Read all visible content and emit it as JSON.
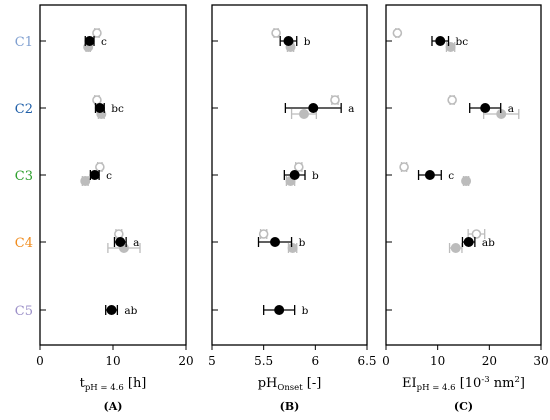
{
  "chart_data": [
    {
      "type": "scatter",
      "panel_label": "(A)",
      "xlabel_main": "t",
      "xlabel_sub": "pH = 4.6",
      "xlabel_tail": " [h]",
      "xlim": [
        0,
        20
      ],
      "xticks": [
        0,
        10,
        20
      ],
      "categories": [
        "C1",
        "C2",
        "C3",
        "C4",
        "C5"
      ],
      "category_colors": [
        "#7f9fd0",
        "#1f5fa8",
        "#2ea02e",
        "#f08c1e",
        "#9c90c8"
      ],
      "series": [
        {
          "role": "filled-black",
          "values": [
            6.8,
            8.2,
            7.5,
            11.0,
            9.8
          ],
          "errors": [
            0.6,
            0.6,
            0.6,
            0.8,
            0.8
          ]
        },
        {
          "role": "open-gray",
          "values": [
            7.8,
            7.8,
            8.2,
            10.8,
            null
          ],
          "errors": [
            0.3,
            0.3,
            0.3,
            0.4,
            null
          ]
        },
        {
          "role": "filled-gray",
          "values": [
            6.6,
            8.4,
            6.2,
            11.5,
            null
          ],
          "errors": [
            0.3,
            0.4,
            0.4,
            2.2,
            null
          ]
        }
      ],
      "annotations": [
        "c",
        "bc",
        "c",
        "a",
        "ab"
      ]
    },
    {
      "type": "scatter",
      "panel_label": "(B)",
      "xlabel_main": "pH",
      "xlabel_sub": "Onset",
      "xlabel_tail": " [-]",
      "xlim": [
        5.0,
        6.5
      ],
      "xticks": [
        5.0,
        5.5,
        6.0,
        6.5
      ],
      "xtick_labels": [
        "5",
        "5.5",
        "6",
        "6.5"
      ],
      "categories": [
        "C1",
        "C2",
        "C3",
        "C4",
        "C5"
      ],
      "series": [
        {
          "role": "filled-black",
          "values": [
            5.74,
            5.98,
            5.8,
            5.61,
            5.65
          ],
          "errors": [
            0.08,
            0.27,
            0.1,
            0.16,
            0.15
          ]
        },
        {
          "role": "open-gray",
          "values": [
            5.62,
            6.19,
            5.84,
            5.5,
            null
          ],
          "errors": [
            0.02,
            0.03,
            0.03,
            0.03,
            null
          ]
        },
        {
          "role": "filled-gray",
          "values": [
            5.76,
            5.89,
            5.76,
            5.78,
            null
          ],
          "errors": [
            0.03,
            0.12,
            0.04,
            0.04,
            null
          ]
        }
      ],
      "annotations": [
        "b",
        "a",
        "b",
        "b",
        "b"
      ]
    },
    {
      "type": "scatter",
      "panel_label": "(C)",
      "xlabel_main": "EI",
      "xlabel_sub": "pH = 4.6",
      "xlabel_tail": " [10",
      "xlabel_sup": "-3",
      "xlabel_end": " nm",
      "xlabel_sup2": "2",
      "xlabel_close": "]",
      "xlim": [
        0,
        30
      ],
      "xticks": [
        0,
        10,
        20,
        30
      ],
      "categories": [
        "C1",
        "C2",
        "C3",
        "C4",
        "C5"
      ],
      "series": [
        {
          "role": "filled-black",
          "values": [
            10.5,
            19.2,
            8.5,
            16.0,
            null
          ],
          "errors": [
            1.6,
            3.0,
            2.2,
            1.2,
            null
          ]
        },
        {
          "role": "open-gray",
          "values": [
            2.2,
            12.8,
            3.5,
            17.5,
            null
          ],
          "errors": [
            0.3,
            0.4,
            0.5,
            1.6,
            null
          ]
        },
        {
          "role": "filled-gray",
          "values": [
            12.5,
            22.3,
            15.5,
            13.5,
            null
          ],
          "errors": [
            0.8,
            3.4,
            0.5,
            1.2,
            null
          ]
        }
      ],
      "annotations": [
        "bc",
        "a",
        "c",
        "ab",
        null
      ]
    }
  ]
}
